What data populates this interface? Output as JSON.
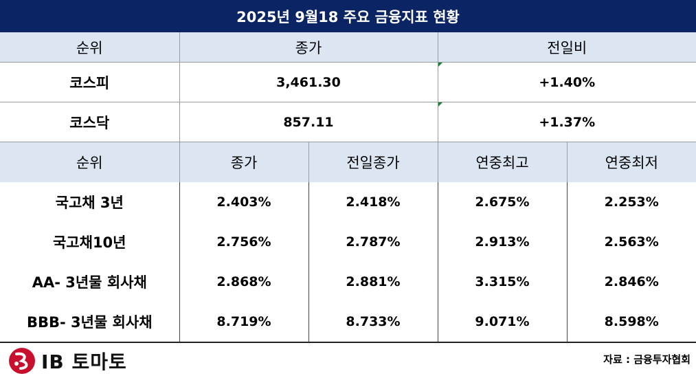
{
  "title": "2025년 9월18 주요 금융지표 현황",
  "top_table": {
    "headers": [
      "순위",
      "종가",
      "전일비"
    ],
    "rows": [
      {
        "name": "코스피",
        "close": "3,461.30",
        "change": "+1.40%"
      },
      {
        "name": "코스닥",
        "close": "857.11",
        "change": "+1.37%"
      }
    ]
  },
  "bottom_table": {
    "headers": [
      "순위",
      "종가",
      "전일종가",
      "연중최고",
      "연중최저"
    ],
    "rows": [
      {
        "name": "국고채 3년",
        "close": "2.403%",
        "prev": "2.418%",
        "high": "2.675%",
        "low": "2.253%"
      },
      {
        "name": "국고채10년",
        "close": "2.756%",
        "prev": "2.787%",
        "high": "2.913%",
        "low": "2.563%"
      },
      {
        "name": "AA- 3년물 회사채",
        "close": "2.868%",
        "prev": "2.881%",
        "high": "3.315%",
        "low": "2.846%"
      },
      {
        "name": "BBB- 3년물 회사채",
        "close": "8.719%",
        "prev": "8.733%",
        "high": "9.071%",
        "low": "8.598%"
      }
    ]
  },
  "footer": {
    "logo_text": "IB 토마토",
    "source": "자료 : 금융투자협회"
  },
  "colors": {
    "title_bg": "#0a2464",
    "header_bg": "#dce6f2",
    "logo_red": "#c8102e"
  }
}
